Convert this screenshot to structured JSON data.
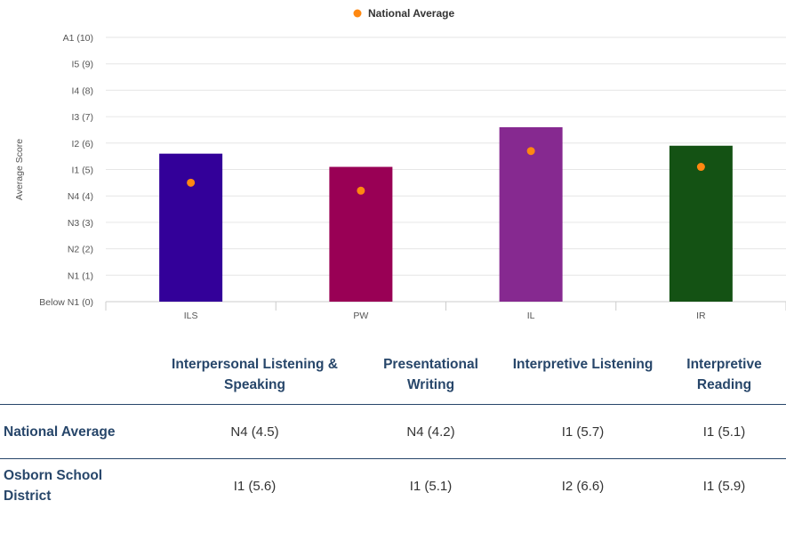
{
  "chart_data": {
    "type": "bar",
    "categories": [
      "ILS",
      "PW",
      "IL",
      "IR"
    ],
    "series": [
      {
        "name": "",
        "values": [
          5.6,
          5.1,
          6.6,
          5.9
        ],
        "colors": [
          "#330099",
          "#990055",
          "#862990",
          "#145214"
        ]
      },
      {
        "name": "National Average",
        "type": "scatter",
        "values": [
          4.5,
          4.2,
          5.7,
          5.1
        ],
        "color": "#ff8811"
      }
    ],
    "ylabel": "Average Score",
    "xlabel": "",
    "ylim": [
      0,
      10
    ],
    "yticks": [
      {
        "value": 0,
        "label": "Below N1 (0)"
      },
      {
        "value": 1,
        "label": "N1 (1)"
      },
      {
        "value": 2,
        "label": "N2 (2)"
      },
      {
        "value": 3,
        "label": "N3 (3)"
      },
      {
        "value": 4,
        "label": "N4 (4)"
      },
      {
        "value": 5,
        "label": "I1 (5)"
      },
      {
        "value": 6,
        "label": "I2 (6)"
      },
      {
        "value": 7,
        "label": "I3 (7)"
      },
      {
        "value": 8,
        "label": "I4 (8)"
      },
      {
        "value": 9,
        "label": "I5 (9)"
      },
      {
        "value": 10,
        "label": "A1 (10)"
      }
    ],
    "legend": {
      "position": "top-center",
      "entries": [
        "National Average"
      ]
    },
    "grid": true
  },
  "table": {
    "headers": [
      "",
      "Interpersonal Listening & Speaking",
      "Presentational Writing",
      "Interpretive Listening",
      "Interpretive Reading"
    ],
    "rows": [
      {
        "label": "National Average",
        "cells": [
          "N4 (4.5)",
          "N4 (4.2)",
          "I1 (5.7)",
          "I1 (5.1)"
        ]
      },
      {
        "label": "Osborn School District",
        "cells": [
          "I1 (5.6)",
          "I1 (5.1)",
          "I2 (6.6)",
          "I1 (5.9)"
        ]
      }
    ]
  }
}
